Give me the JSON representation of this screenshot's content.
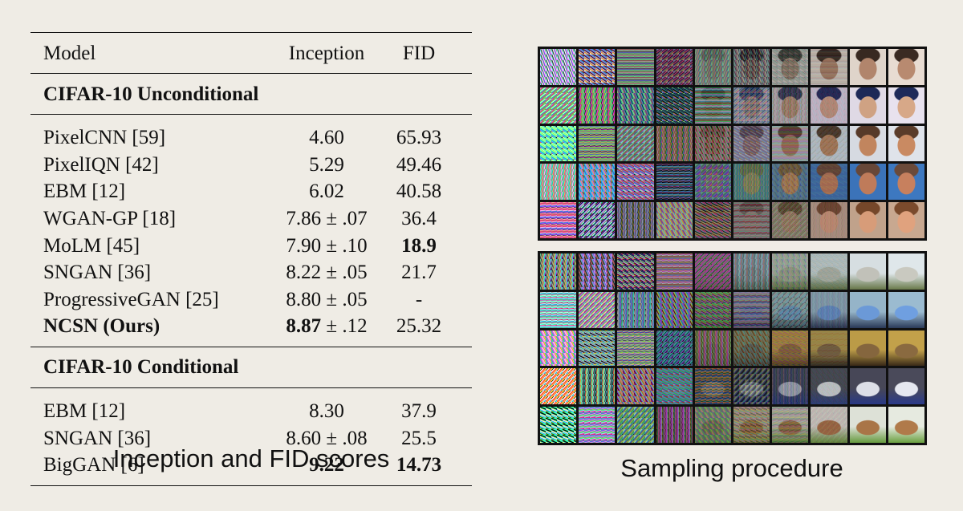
{
  "table": {
    "headers": {
      "model": "Model",
      "inception": "Inception",
      "fid": "FID"
    },
    "sections": [
      {
        "title": "CIFAR-10 Unconditional",
        "rows": [
          {
            "model": "PixelCNN [59]",
            "inception": "4.60",
            "inception_pm": "",
            "fid": "65.93",
            "bold_model": false,
            "bold_inception": false,
            "bold_fid": false
          },
          {
            "model": "PixelIQN [42]",
            "inception": "5.29",
            "inception_pm": "",
            "fid": "49.46",
            "bold_model": false,
            "bold_inception": false,
            "bold_fid": false
          },
          {
            "model": "EBM [12]",
            "inception": "6.02",
            "inception_pm": "",
            "fid": "40.58",
            "bold_model": false,
            "bold_inception": false,
            "bold_fid": false
          },
          {
            "model": "WGAN-GP [18]",
            "inception": "7.86",
            "inception_pm": "± .07",
            "fid": "36.4",
            "bold_model": false,
            "bold_inception": false,
            "bold_fid": false
          },
          {
            "model": "MoLM [45]",
            "inception": "7.90",
            "inception_pm": "± .10",
            "fid": "18.9",
            "bold_model": false,
            "bold_inception": false,
            "bold_fid": true
          },
          {
            "model": "SNGAN [36]",
            "inception": "8.22",
            "inception_pm": "± .05",
            "fid": "21.7",
            "bold_model": false,
            "bold_inception": false,
            "bold_fid": false
          },
          {
            "model": "ProgressiveGAN [25]",
            "inception": "8.80",
            "inception_pm": "± .05",
            "fid": "-",
            "bold_model": false,
            "bold_inception": false,
            "bold_fid": false
          },
          {
            "model": "NCSN (Ours)",
            "inception": "8.87",
            "inception_pm": "± .12",
            "fid": "25.32",
            "bold_model": true,
            "bold_inception": true,
            "bold_fid": false
          }
        ]
      },
      {
        "title": "CIFAR-10 Conditional",
        "rows": [
          {
            "model": "EBM [12]",
            "inception": "8.30",
            "inception_pm": "",
            "fid": "37.9",
            "bold_model": false,
            "bold_inception": false,
            "bold_fid": false
          },
          {
            "model": "SNGAN [36]",
            "inception": "8.60",
            "inception_pm": "± .08",
            "fid": "25.5",
            "bold_model": false,
            "bold_inception": false,
            "bold_fid": false
          },
          {
            "model": "BigGAN [6]",
            "inception": "9.22",
            "inception_pm": "",
            "fid": "14.73",
            "bold_model": false,
            "bold_inception": true,
            "bold_fid": true
          }
        ]
      }
    ]
  },
  "captions": {
    "left": "Inception and FID scores",
    "right": "Sampling procedure"
  },
  "grids": {
    "faces": {
      "rows": [
        {
          "subject": "face",
          "palette": [
            "#b88a70",
            "#3a2a22",
            "#e8dcd2"
          ]
        },
        {
          "subject": "face",
          "palette": [
            "#d7a888",
            "#1e2a5a",
            "#e8e2ee"
          ]
        },
        {
          "subject": "face",
          "palette": [
            "#c98a62",
            "#5a3c2a",
            "#dfe3ea"
          ]
        },
        {
          "subject": "face",
          "palette": [
            "#c7805e",
            "#6b4a3a",
            "#3d78c0"
          ]
        },
        {
          "subject": "face",
          "palette": [
            "#e0a27e",
            "#7a4a2c",
            "#c8a890"
          ]
        }
      ]
    },
    "objects": {
      "rows": [
        {
          "subject": "truck",
          "palette": [
            "#c9c9c0",
            "#6a7a4a",
            "#dfe7ea"
          ]
        },
        {
          "subject": "car",
          "palette": [
            "#6f9fe0",
            "#2a3a5a",
            "#9bbbd0"
          ]
        },
        {
          "subject": "animal",
          "palette": [
            "#8a6a40",
            "#3a2a18",
            "#c2a14a"
          ]
        },
        {
          "subject": "truck",
          "palette": [
            "#e6e8f0",
            "#2a3a8a",
            "#4a4a5a"
          ]
        },
        {
          "subject": "horse",
          "palette": [
            "#b07a4a",
            "#6aa040",
            "#e6eae0"
          ]
        }
      ]
    }
  }
}
